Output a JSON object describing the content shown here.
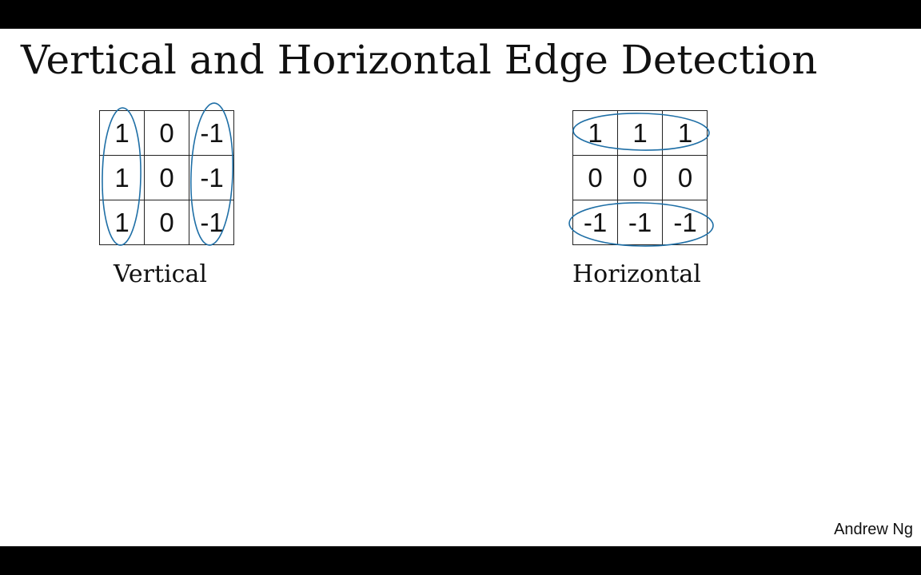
{
  "slide": {
    "title": "Vertical and Horizontal Edge Detection",
    "credit": "Andrew Ng",
    "ink_color": "#1f6fa6"
  },
  "filters": {
    "vertical": {
      "caption": "Vertical",
      "cells": [
        [
          "1",
          "0",
          "-1"
        ],
        [
          "1",
          "0",
          "-1"
        ],
        [
          "1",
          "0",
          "-1"
        ]
      ]
    },
    "horizontal": {
      "caption": "Horizontal",
      "cells": [
        [
          "1",
          "1",
          "1"
        ],
        [
          "0",
          "0",
          "0"
        ],
        [
          "-1",
          "-1",
          "-1"
        ]
      ]
    }
  }
}
